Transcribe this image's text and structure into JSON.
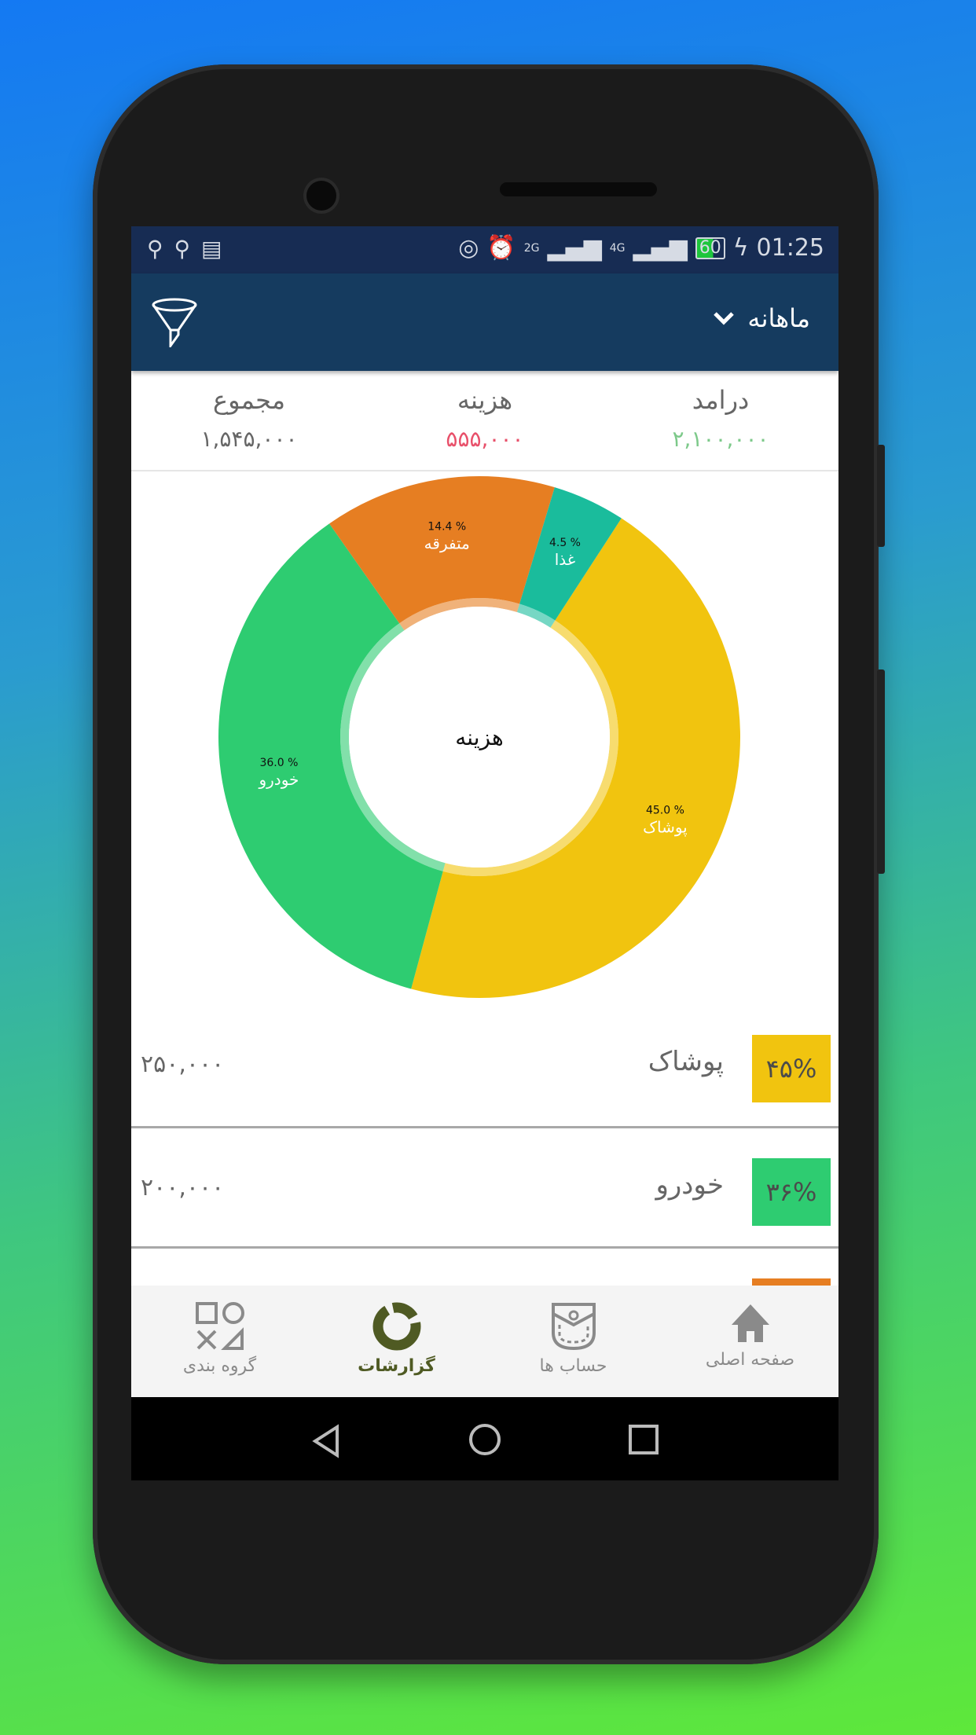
{
  "status_bar": {
    "time": "01:25",
    "battery": "60",
    "network_labels": [
      "2G",
      "4G"
    ],
    "left_icons": [
      "usb-icon",
      "usb-icon",
      "calendar-icon"
    ],
    "right_icons": [
      "hotspot-icon",
      "alarm-icon",
      "signal-icon",
      "signal-icon",
      "battery-icon",
      "charging-icon"
    ]
  },
  "header": {
    "period": "ماهانه",
    "filter_icon": "funnel-icon"
  },
  "summary": {
    "income": {
      "label": "درامد",
      "value": "۲,۱۰۰,۰۰۰",
      "color": "#7dc98a"
    },
    "expense": {
      "label": "هزینه",
      "value": "۵۵۵,۰۰۰",
      "color": "#e8506a"
    },
    "total": {
      "label": "مجموع",
      "value": "۱,۵۴۵,۰۰۰",
      "color": "#666666"
    }
  },
  "chart_data": {
    "type": "pie",
    "center_label": "هزینه",
    "slices": [
      {
        "name": "پوشاک",
        "value": 45.0,
        "label": "45.0 %",
        "color": "#f1c40f"
      },
      {
        "name": "خودرو",
        "value": 36.0,
        "label": "36.0 %",
        "color": "#2ecc71"
      },
      {
        "name": "متفرقه",
        "value": 14.4,
        "label": "14.4 %",
        "color": "#e67e22"
      },
      {
        "name": "غذا",
        "value": 4.5,
        "label": "4.5 %",
        "color": "#1abc9c"
      }
    ]
  },
  "rows": [
    {
      "percent": "۴۵%",
      "name": "پوشاک",
      "amount": "۲۵۰,۰۰۰",
      "color": "#f1c40f"
    },
    {
      "percent": "۳۶%",
      "name": "خودرو",
      "amount": "۲۰۰,۰۰۰",
      "color": "#2ecc71"
    },
    {
      "percent": "",
      "name": "",
      "amount": "",
      "color": "#e67e22"
    }
  ],
  "nav": [
    {
      "label": "صفحه اصلی",
      "icon": "home-icon"
    },
    {
      "label": "حساب ها",
      "icon": "pocket-icon"
    },
    {
      "label": "گزارشات",
      "icon": "report-ring-icon",
      "active": true
    },
    {
      "label": "گروه بندی",
      "icon": "shapes-icon"
    }
  ]
}
